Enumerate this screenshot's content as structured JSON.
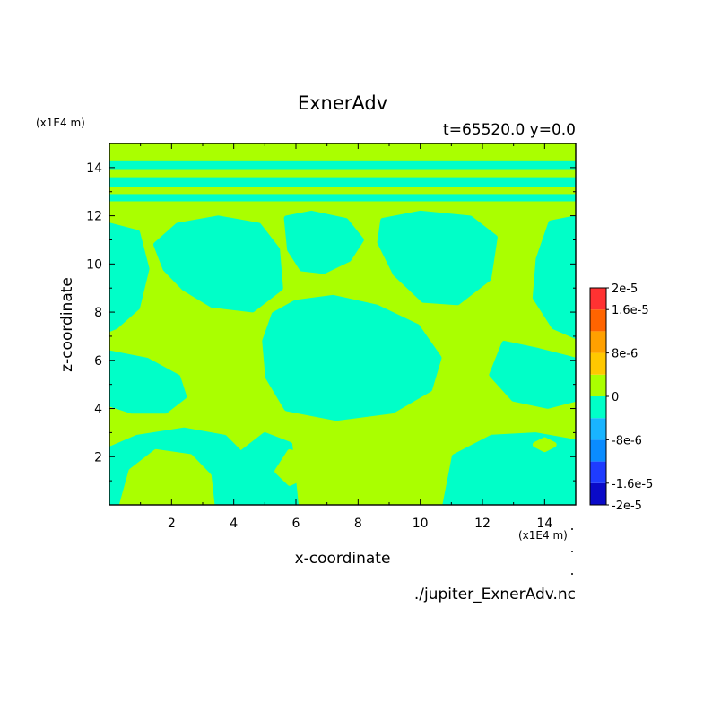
{
  "chart_data": {
    "type": "heatmap",
    "title": "ExnerAdv",
    "subtitle": "t=65520.0 y=0.0",
    "xlabel": "x-coordinate",
    "ylabel": "z-coordinate",
    "x_unit": "(x1E4 m)",
    "y_unit": "(x1E4 m)",
    "xlim": [
      0,
      15
    ],
    "ylim": [
      0,
      15
    ],
    "xticks": [
      "2",
      "4",
      "6",
      "8",
      "10",
      "12",
      "14"
    ],
    "yticks": [
      "2",
      "4",
      "6",
      "8",
      "10",
      "12",
      "14"
    ],
    "source_file": "./jupiter_ExnerAdv.nc",
    "colorbar": {
      "levels": [
        -2e-05,
        -1.6e-05,
        -1.2e-05,
        -8e-06,
        -4e-06,
        0,
        4e-06,
        8e-06,
        1.2e-05,
        1.6e-05,
        2e-05
      ],
      "colors": [
        "#0a0ac8",
        "#1e3cff",
        "#0a8cff",
        "#19b4ff",
        "#00ffc8",
        "#aaff00",
        "#ffc800",
        "#ffa000",
        "#ff6400",
        "#ff3232"
      ],
      "labels": [
        {
          "text": "2e-5",
          "value": 2e-05
        },
        {
          "text": "1.6e-5",
          "value": 1.6e-05
        },
        {
          "text": "8e-6",
          "value": 8e-06
        },
        {
          "text": "0",
          "value": 0
        },
        {
          "text": "-8e-6",
          "value": -8e-06
        },
        {
          "text": "-1.6e-5",
          "value": -1.6e-05
        },
        {
          "text": "-2e-5",
          "value": -2e-05
        }
      ]
    },
    "field_value_ranges": {
      "positive_0_to_4e-6": "#aaff00",
      "negative_-4e-6_to_0": "#00ffc8"
    },
    "regions": {
      "top_bands_z": [
        [
          13.9,
          14.3
        ],
        [
          13.2,
          13.6
        ],
        [
          12.6,
          12.9
        ]
      ],
      "negative_blobs": [
        {
          "name": "upper-left",
          "points": [
            [
              1.5,
              10.8
            ],
            [
              2.2,
              11.6
            ],
            [
              3.5,
              11.9
            ],
            [
              4.8,
              11.6
            ],
            [
              5.4,
              10.6
            ],
            [
              5.5,
              9.0
            ],
            [
              4.6,
              8.1
            ],
            [
              3.3,
              8.3
            ],
            [
              2.4,
              9.0
            ],
            [
              1.8,
              9.8
            ]
          ]
        },
        {
          "name": "upper-center",
          "points": [
            [
              5.7,
              11.9
            ],
            [
              6.5,
              12.1
            ],
            [
              7.6,
              11.8
            ],
            [
              8.1,
              11.0
            ],
            [
              7.7,
              10.2
            ],
            [
              6.9,
              9.7
            ],
            [
              6.2,
              9.8
            ],
            [
              5.8,
              10.6
            ]
          ]
        },
        {
          "name": "upper-right",
          "points": [
            [
              8.8,
              11.8
            ],
            [
              10.0,
              12.1
            ],
            [
              11.6,
              11.9
            ],
            [
              12.4,
              11.1
            ],
            [
              12.2,
              9.4
            ],
            [
              11.2,
              8.4
            ],
            [
              10.1,
              8.5
            ],
            [
              9.2,
              9.6
            ],
            [
              8.7,
              10.9
            ]
          ]
        },
        {
          "name": "far-right",
          "points": [
            [
              14.2,
              11.7
            ],
            [
              15.0,
              11.9
            ],
            [
              15.0,
              7.0
            ],
            [
              14.3,
              7.4
            ],
            [
              13.7,
              8.6
            ],
            [
              13.8,
              10.2
            ]
          ]
        },
        {
          "name": "left-edge",
          "points": [
            [
              0,
              11.6
            ],
            [
              0.9,
              11.3
            ],
            [
              1.2,
              9.8
            ],
            [
              0.9,
              8.2
            ],
            [
              0.2,
              7.4
            ],
            [
              0,
              7.3
            ]
          ]
        },
        {
          "name": "center",
          "points": [
            [
              5.3,
              7.9
            ],
            [
              6.0,
              8.4
            ],
            [
              7.2,
              8.6
            ],
            [
              8.6,
              8.2
            ],
            [
              9.9,
              7.4
            ],
            [
              10.6,
              6.1
            ],
            [
              10.3,
              4.8
            ],
            [
              9.1,
              3.9
            ],
            [
              7.3,
              3.6
            ],
            [
              5.7,
              4.0
            ],
            [
              5.1,
              5.3
            ],
            [
              5.0,
              6.8
            ]
          ]
        },
        {
          "name": "mid-left",
          "points": [
            [
              0,
              6.3
            ],
            [
              1.2,
              6.0
            ],
            [
              2.2,
              5.3
            ],
            [
              2.4,
              4.5
            ],
            [
              1.8,
              3.9
            ],
            [
              0.7,
              3.9
            ],
            [
              0,
              4.2
            ]
          ]
        },
        {
          "name": "mid-right",
          "points": [
            [
              12.7,
              6.7
            ],
            [
              13.8,
              6.4
            ],
            [
              15.0,
              6.0
            ],
            [
              15.0,
              4.4
            ],
            [
              14.1,
              4.1
            ],
            [
              13.0,
              4.4
            ],
            [
              12.3,
              5.4
            ]
          ]
        },
        {
          "name": "bottom-left",
          "points": [
            [
              0,
              2.3
            ],
            [
              0.9,
              2.8
            ],
            [
              2.4,
              3.1
            ],
            [
              3.7,
              2.8
            ],
            [
              4.4,
              1.9
            ],
            [
              4.2,
              0
            ],
            [
              0,
              0
            ]
          ]
        },
        {
          "name": "bottom-center",
          "points": [
            [
              4.2,
              0
            ],
            [
              4.3,
              2.2
            ],
            [
              5.0,
              2.9
            ],
            [
              5.8,
              2.5
            ],
            [
              6.0,
              0
            ]
          ]
        },
        {
          "name": "bottom-right",
          "points": [
            [
              10.8,
              0
            ],
            [
              11.1,
              2.0
            ],
            [
              12.3,
              2.8
            ],
            [
              13.7,
              2.9
            ],
            [
              15.0,
              2.6
            ],
            [
              15.0,
              0
            ]
          ]
        }
      ],
      "positive_blobs": [
        {
          "name": "low-left",
          "points": [
            [
              0.4,
              0
            ],
            [
              0.7,
              1.4
            ],
            [
              1.5,
              2.2
            ],
            [
              2.6,
              2.0
            ],
            [
              3.2,
              1.2
            ],
            [
              3.3,
              0
            ]
          ]
        },
        {
          "name": "low-center",
          "points": [
            [
              7.6,
              0
            ],
            [
              7.9,
              2.4
            ],
            [
              8.6,
              3.1
            ],
            [
              9.4,
              2.7
            ],
            [
              9.8,
              1.5
            ],
            [
              9.8,
              0
            ]
          ]
        },
        {
          "name": "small-center",
          "points": [
            [
              5.4,
              1.4
            ],
            [
              5.8,
              2.2
            ],
            [
              6.3,
              2.0
            ],
            [
              6.3,
              1.2
            ],
            [
              5.8,
              0.9
            ]
          ]
        },
        {
          "name": "tiny-right",
          "points": [
            [
              13.7,
              2.5
            ],
            [
              14.0,
              2.7
            ],
            [
              14.3,
              2.5
            ],
            [
              14.0,
              2.3
            ]
          ]
        }
      ]
    }
  }
}
